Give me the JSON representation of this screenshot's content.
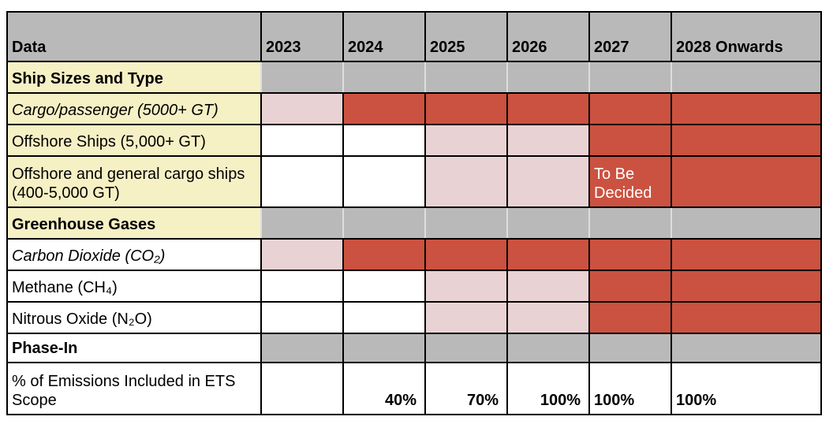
{
  "colors": {
    "gray": "#b9b9b9",
    "beige": "#f6f0c5",
    "pink": "#e9d2d4",
    "red": "#cb5240",
    "border": "#000000",
    "divider": "#dedede",
    "white_text": "#ffffff"
  },
  "table": {
    "header": [
      "Data",
      "2023",
      "2024",
      "2025",
      "2026",
      "2027",
      "2028 Onwards"
    ],
    "rows": [
      {
        "label": "Ship Sizes and Type",
        "emphasis": "bold",
        "label_bg": "beige",
        "kind": "section-light",
        "cells": [
          {
            "bg": "gray"
          },
          {
            "bg": "gray"
          },
          {
            "bg": "gray"
          },
          {
            "bg": "gray"
          },
          {
            "bg": "gray"
          },
          {
            "bg": "gray"
          }
        ]
      },
      {
        "label": "Cargo/passenger (5000+ GT)",
        "emphasis": "italic",
        "label_bg": "beige",
        "kind": "data",
        "cells": [
          {
            "bg": "pink"
          },
          {
            "bg": "red"
          },
          {
            "bg": "red"
          },
          {
            "bg": "red"
          },
          {
            "bg": "red"
          },
          {
            "bg": "red"
          }
        ]
      },
      {
        "label": "Offshore Ships (5,000+ GT)",
        "emphasis": "normal",
        "label_bg": "beige",
        "kind": "data",
        "cells": [
          {
            "bg": "white"
          },
          {
            "bg": "white"
          },
          {
            "bg": "pink"
          },
          {
            "bg": "pink"
          },
          {
            "bg": "red"
          },
          {
            "bg": "red"
          }
        ]
      },
      {
        "label": "Offshore and general cargo ships (400-5,000 GT)",
        "emphasis": "normal",
        "label_bg": "beige",
        "kind": "data",
        "cells": [
          {
            "bg": "white"
          },
          {
            "bg": "white"
          },
          {
            "bg": "pink"
          },
          {
            "bg": "pink"
          },
          {
            "bg": "red",
            "text": "To Be Decided",
            "text_color": "white"
          },
          {
            "bg": "red"
          }
        ]
      },
      {
        "label": "Greenhouse Gases",
        "emphasis": "bold",
        "label_bg": "beige",
        "kind": "section-light",
        "cells": [
          {
            "bg": "gray"
          },
          {
            "bg": "gray"
          },
          {
            "bg": "gray"
          },
          {
            "bg": "gray"
          },
          {
            "bg": "gray"
          },
          {
            "bg": "gray"
          }
        ]
      },
      {
        "label": "Carbon Dioxide (CO₂)",
        "emphasis": "italic",
        "label_bg": "white",
        "kind": "data",
        "cells": [
          {
            "bg": "pink"
          },
          {
            "bg": "red"
          },
          {
            "bg": "red"
          },
          {
            "bg": "red"
          },
          {
            "bg": "red"
          },
          {
            "bg": "red"
          }
        ]
      },
      {
        "label": "Methane (CH₄)",
        "emphasis": "normal",
        "label_bg": "white",
        "kind": "data",
        "cells": [
          {
            "bg": "white"
          },
          {
            "bg": "white"
          },
          {
            "bg": "pink"
          },
          {
            "bg": "pink"
          },
          {
            "bg": "red"
          },
          {
            "bg": "red"
          }
        ]
      },
      {
        "label": "Nitrous Oxide (N₂O)",
        "emphasis": "normal",
        "label_bg": "white",
        "kind": "data",
        "cells": [
          {
            "bg": "white"
          },
          {
            "bg": "white"
          },
          {
            "bg": "pink"
          },
          {
            "bg": "pink"
          },
          {
            "bg": "red"
          },
          {
            "bg": "red"
          }
        ]
      },
      {
        "label": "Phase-In",
        "emphasis": "bold",
        "label_bg": "white",
        "kind": "section-dark",
        "cells": [
          {
            "bg": "gray"
          },
          {
            "bg": "gray"
          },
          {
            "bg": "gray"
          },
          {
            "bg": "gray"
          },
          {
            "bg": "gray"
          },
          {
            "bg": "gray"
          }
        ]
      },
      {
        "label": "% of Emissions Included in ETS Scope",
        "emphasis": "normal",
        "label_bg": "white",
        "kind": "data",
        "cells": [
          {
            "bg": "white"
          },
          {
            "bg": "white",
            "text": "40%",
            "bold": true,
            "align": "right"
          },
          {
            "bg": "white",
            "text": "70%",
            "bold": true,
            "align": "right"
          },
          {
            "bg": "white",
            "text": "100%",
            "bold": true,
            "align": "right"
          },
          {
            "bg": "white",
            "text": "100%",
            "bold": true,
            "align": "left"
          },
          {
            "bg": "white",
            "text": "100%",
            "bold": true,
            "align": "left"
          }
        ]
      }
    ]
  }
}
